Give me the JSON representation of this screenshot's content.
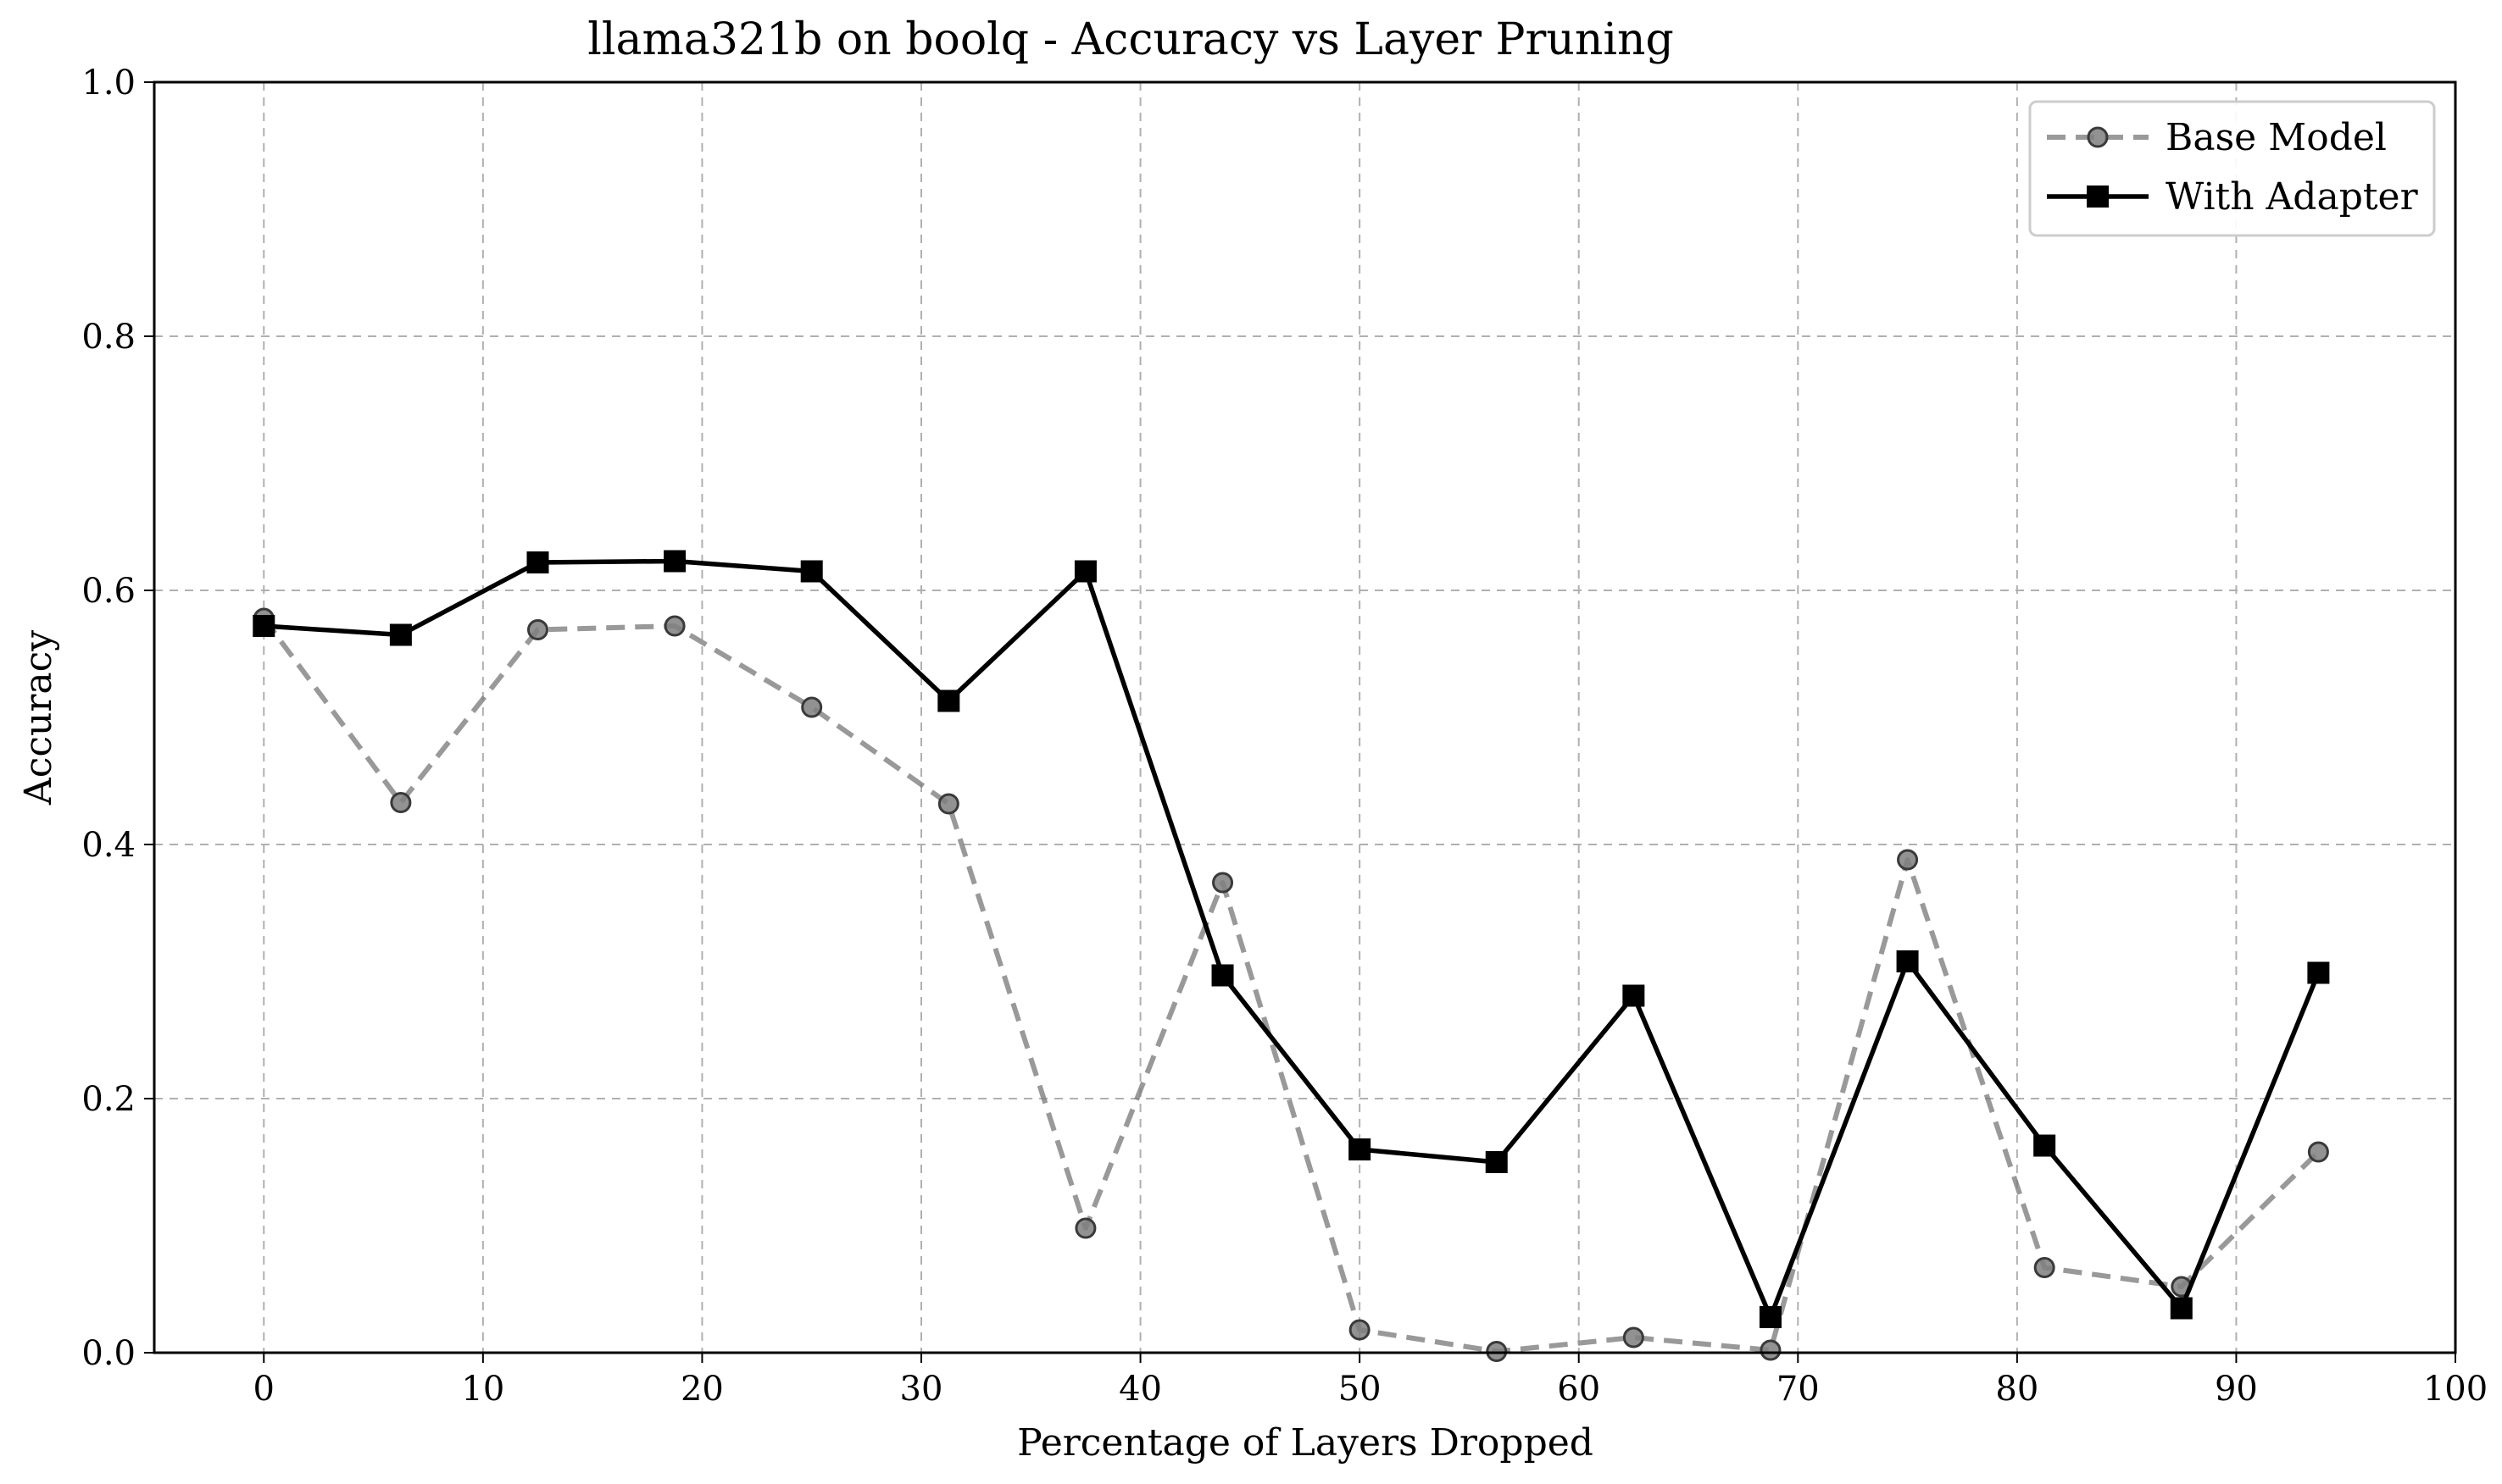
{
  "chart_data": {
    "type": "line",
    "title": "llama321b on boolq - Accuracy vs Layer Pruning",
    "xlabel": "Percentage of Layers Dropped",
    "ylabel": "Accuracy",
    "xlim": [
      -5,
      100
    ],
    "ylim": [
      0,
      1
    ],
    "xticks": [
      0,
      10,
      20,
      30,
      40,
      50,
      60,
      70,
      80,
      90,
      100
    ],
    "xtick_labels": [
      "0",
      "10",
      "20",
      "30",
      "40",
      "50",
      "60",
      "70",
      "80",
      "90",
      "100"
    ],
    "yticks": [
      0.0,
      0.2,
      0.4,
      0.6,
      0.8,
      1.0
    ],
    "ytick_labels": [
      "0.0",
      "0.2",
      "0.4",
      "0.6",
      "0.8",
      "1.0"
    ],
    "grid": true,
    "legend_position": "top-right",
    "x": [
      0,
      6.25,
      12.5,
      18.75,
      25,
      31.25,
      37.5,
      43.75,
      50,
      56.25,
      62.5,
      68.75,
      75,
      81.25,
      87.5,
      93.75
    ],
    "series": [
      {
        "name": "Base Model",
        "style": "dashed",
        "marker": "circle",
        "color": "#7f7f7f",
        "values": [
          0.578,
          0.433,
          0.569,
          0.572,
          0.508,
          0.432,
          0.098,
          0.37,
          0.018,
          0.001,
          0.012,
          0.002,
          0.388,
          0.067,
          0.052,
          0.158
        ]
      },
      {
        "name": "With Adapter",
        "style": "solid",
        "marker": "square",
        "color": "#000000",
        "values": [
          0.572,
          0.565,
          0.622,
          0.623,
          0.615,
          0.513,
          0.615,
          0.297,
          0.16,
          0.15,
          0.281,
          0.028,
          0.308,
          0.163,
          0.035,
          0.299
        ]
      }
    ]
  }
}
